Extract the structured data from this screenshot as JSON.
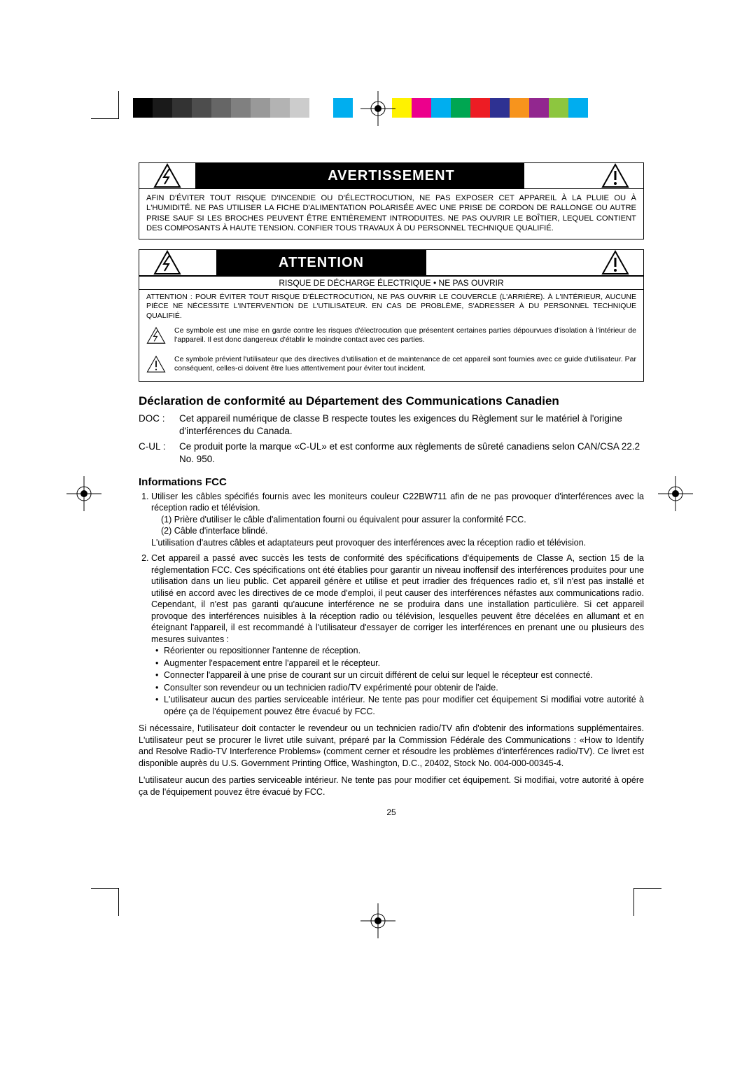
{
  "registration": {
    "gray_swatches": [
      "#000000",
      "#1a1a1a",
      "#333333",
      "#4d4d4d",
      "#666666",
      "#808080",
      "#999999",
      "#b3b3b3",
      "#cccccc",
      "#ffffff"
    ],
    "cyan": "#00aeef",
    "color_swatches": [
      "#fff200",
      "#ec008c",
      "#00aeef",
      "#00a651",
      "#ed1c24",
      "#2e3192",
      "#f7941d",
      "#92278f",
      "#8dc63f",
      "#00adef"
    ]
  },
  "warning_box": {
    "title": "AVERTISSEMENT",
    "body": "AFIN D'ÉVITER TOUT RISQUE D'INCENDIE OU D'ÉLECTROCUTION, NE PAS EXPOSER CET APPAREIL À LA PLUIE OU À L'HUMIDITÉ. NE PAS UTILISER LA FICHE D'ALIMENTATION POLARISÉE AVEC UNE PRISE DE CORDON DE RALLONGE OU AUTRE PRISE SAUF SI LES BROCHES PEUVENT ÊTRE ENTIÈREMENT INTRODUITES. NE PAS OUVRIR LE BOÎTIER, LEQUEL CONTIENT DES COMPOSANTS À HAUTE TENSION. CONFIER TOUS TRAVAUX À DU PERSONNEL TECHNIQUE QUALIFIÉ."
  },
  "attention_box": {
    "title": "ATTENTION",
    "subtitle": "RISQUE DE DÉCHARGE ÉLECTRIQUE • NE PAS OUVRIR",
    "caption": "ATTENTION : POUR ÉVITER TOUT RISQUE D'ÉLECTROCUTION, NE PAS OUVRIR LE COUVERCLE (L'ARRIÈRE). À L'INTÉRIEUR, AUCUNE PIÈCE NE NÉCESSITE L'INTERVENTION DE L'UTILISATEUR. EN CAS DE PROBLÈME, S'ADRESSER À DU PERSONNEL TECHNIQUE QUALIFIÉ.",
    "symbol1": "Ce symbole est une mise en garde contre les risques d'électrocution que présentent certaines parties dépourvues d'isolation à l'intérieur de l'appareil. Il est donc dangereux d'établir le moindre contact avec ces parties.",
    "symbol2": "Ce symbole prévient l'utilisateur que des directives d'utilisation et de maintenance de cet appareil sont fournies avec ce guide d'utilisateur. Par conséquent, celles-ci doivent être lues attentivement pour éviter tout incident."
  },
  "conformity": {
    "heading": "Déclaration de conformité au Département des Communications Canadien",
    "doc_label": "DOC :",
    "doc_text": "Cet appareil numérique de classe B respecte toutes les exigences du Règlement sur le matériel à l'origine d'interférences du Canada.",
    "cul_label": "C-UL :",
    "cul_text": "Ce produit porte la marque «C-UL» et est conforme aux règlements de sûreté canadiens selon CAN/CSA 22.2 No. 950."
  },
  "fcc": {
    "heading": "Informations FCC",
    "item1_lead": "Utiliser les câbles spécifiés fournis avec les moniteurs couleur C22BW711 afin de ne pas provoquer d'interférences avec la réception radio et télévision.",
    "item1_sub1": "(1)  Prière d'utiliser le câble d'alimentation fourni ou équivalent pour assurer la conformité FCC.",
    "item1_sub2": "(2)  Câble d'interface blindé.",
    "item1_note": "L'utilisation d'autres câbles et adaptateurs peut provoquer des interférences avec la réception radio et télévision.",
    "item2_lead": "Cet appareil a passé avec succès les tests de conformité des spécifications d'équipements de Classe A, section 15 de la réglementation FCC. Ces spécifications ont été établies pour garantir un niveau inoffensif des interférences produites pour une utilisation dans un lieu public. Cet appareil génère et utilise et peut irradier des fréquences radio et, s'il n'est pas installé et utilisé en accord avec les directives de ce mode d'emploi, il peut causer des interférences néfastes aux communications radio. Cependant, il n'est pas garanti qu'aucune interférence ne se produira dans une installation particulière. Si cet appareil provoque des interférences nuisibles à la réception radio ou télévision, lesquelles peuvent être décelées en allumant et en éteignant l'appareil, il est recommandé à l'utilisateur d'essayer de corriger les interférences en prenant une ou plusieurs des mesures suivantes :",
    "bullets": [
      "Réorienter ou repositionner l'antenne de réception.",
      "Augmenter l'espacement entre l'appareil et le récepteur.",
      "Connecter l'appareil à une prise de courant sur un circuit différent de celui sur lequel le récepteur est connecté.",
      "Consulter son revendeur ou un technicien radio/TV expérimenté pour obtenir de l'aide.",
      "L'utilisateur aucun des parties serviceable intérieur. Ne tente pas pour modifier cet équipement Si modifiai votre autorité à opére ça de l'équipement pouvez être évacué by FCC."
    ],
    "para1": "Si nécessaire, l'utilisateur doit contacter le revendeur ou un technicien radio/TV afin d'obtenir des informations supplémentaires. L'utilisateur peut se procurer le livret utile suivant, préparé par la Commission Fédérale des Communications : «How to Identify and Resolve Radio-TV Interference Problems» (comment cerner et résoudre les problèmes d'interférences radio/TV). Ce livret est disponible auprès du U.S. Government Printing Office, Washington, D.C., 20402, Stock No. 004-000-00345-4.",
    "para2": "L'utilisateur aucun des parties serviceable intérieur. Ne tente pas pour modifier cet équipement. Si modifiai, votre autorité à opére ça de l'équipement pouvez être évacué by FCC."
  },
  "page_number": "25"
}
